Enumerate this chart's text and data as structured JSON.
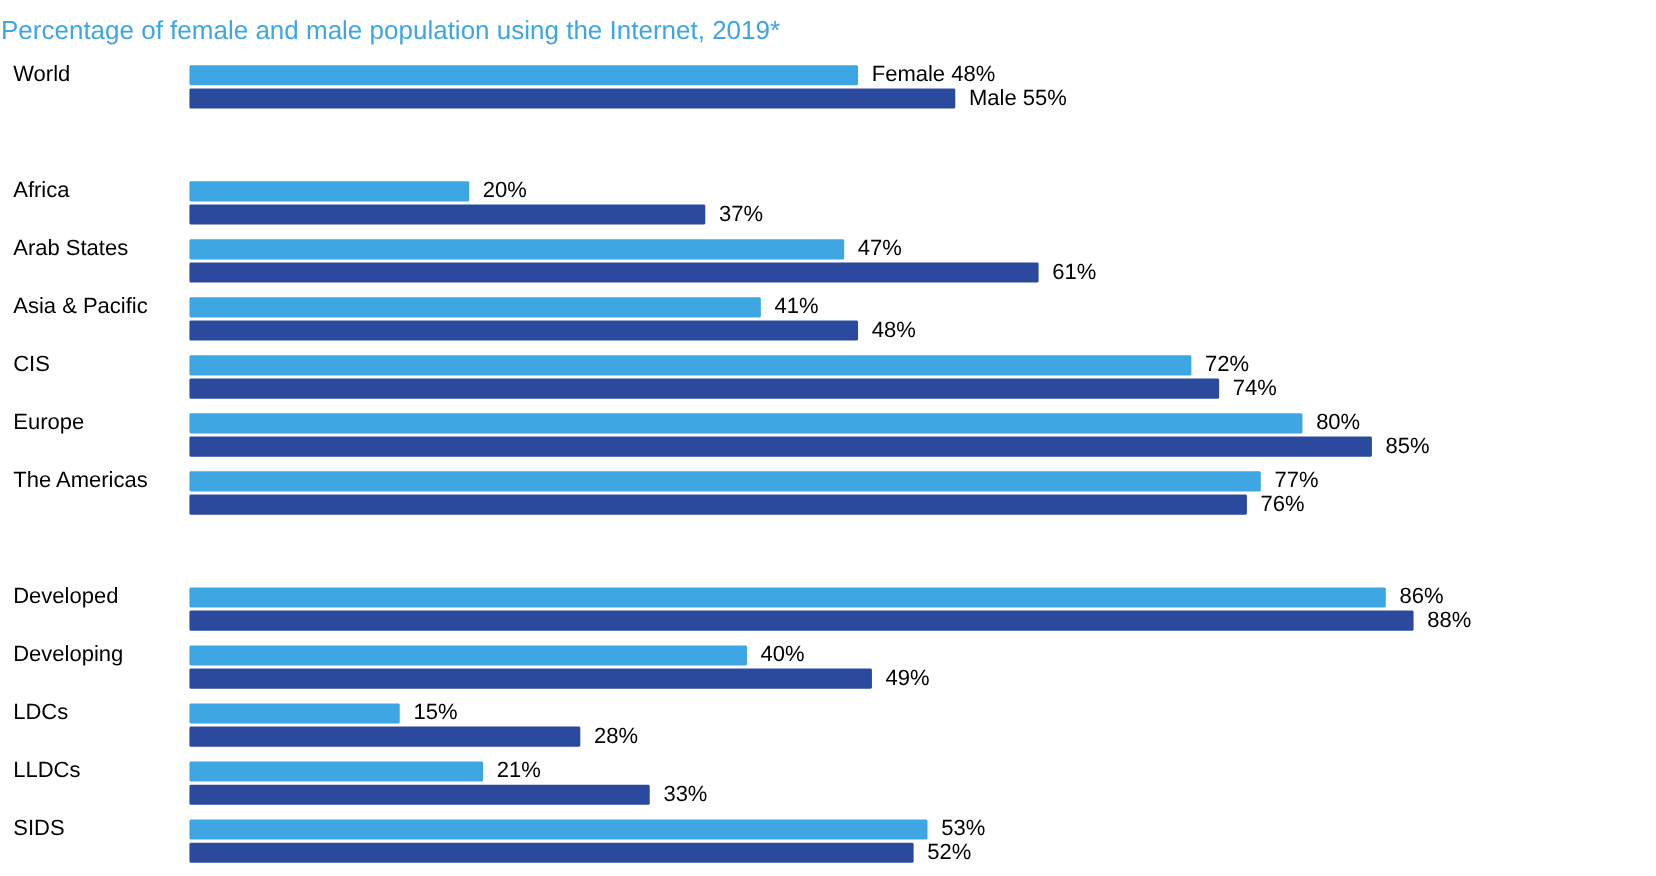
{
  "chart_data": {
    "type": "bar",
    "orientation": "horizontal",
    "title": "Percentage of female and male population using the Internet, 2019*",
    "categories": [
      "World",
      null,
      "Africa",
      "Arab States",
      "Asia & Pacific",
      "CIS",
      "Europe",
      "The Americas",
      null,
      "Developed",
      "Developing",
      "LDCs",
      "LLDCs",
      "SIDS"
    ],
    "series": [
      {
        "name": "Female",
        "color": "#3ea6e3",
        "values": [
          48,
          null,
          20,
          47,
          41,
          72,
          80,
          77,
          null,
          86,
          40,
          15,
          21,
          53
        ],
        "value_labels": [
          "48%",
          null,
          "20%",
          "47%",
          "41%",
          "72%",
          "80%",
          "77%",
          null,
          "86%",
          "40%",
          "15%",
          "21%",
          "53%"
        ]
      },
      {
        "name": "Male",
        "color": "#2b4a9e",
        "values": [
          55,
          null,
          37,
          61,
          48,
          74,
          85,
          76,
          null,
          88,
          49,
          28,
          33,
          52
        ],
        "value_labels": [
          "55%",
          null,
          "37%",
          "61%",
          "48%",
          "74%",
          "85%",
          "76%",
          null,
          "88%",
          "49%",
          "28%",
          "33%",
          "52%"
        ]
      }
    ],
    "legend": false
  }
}
